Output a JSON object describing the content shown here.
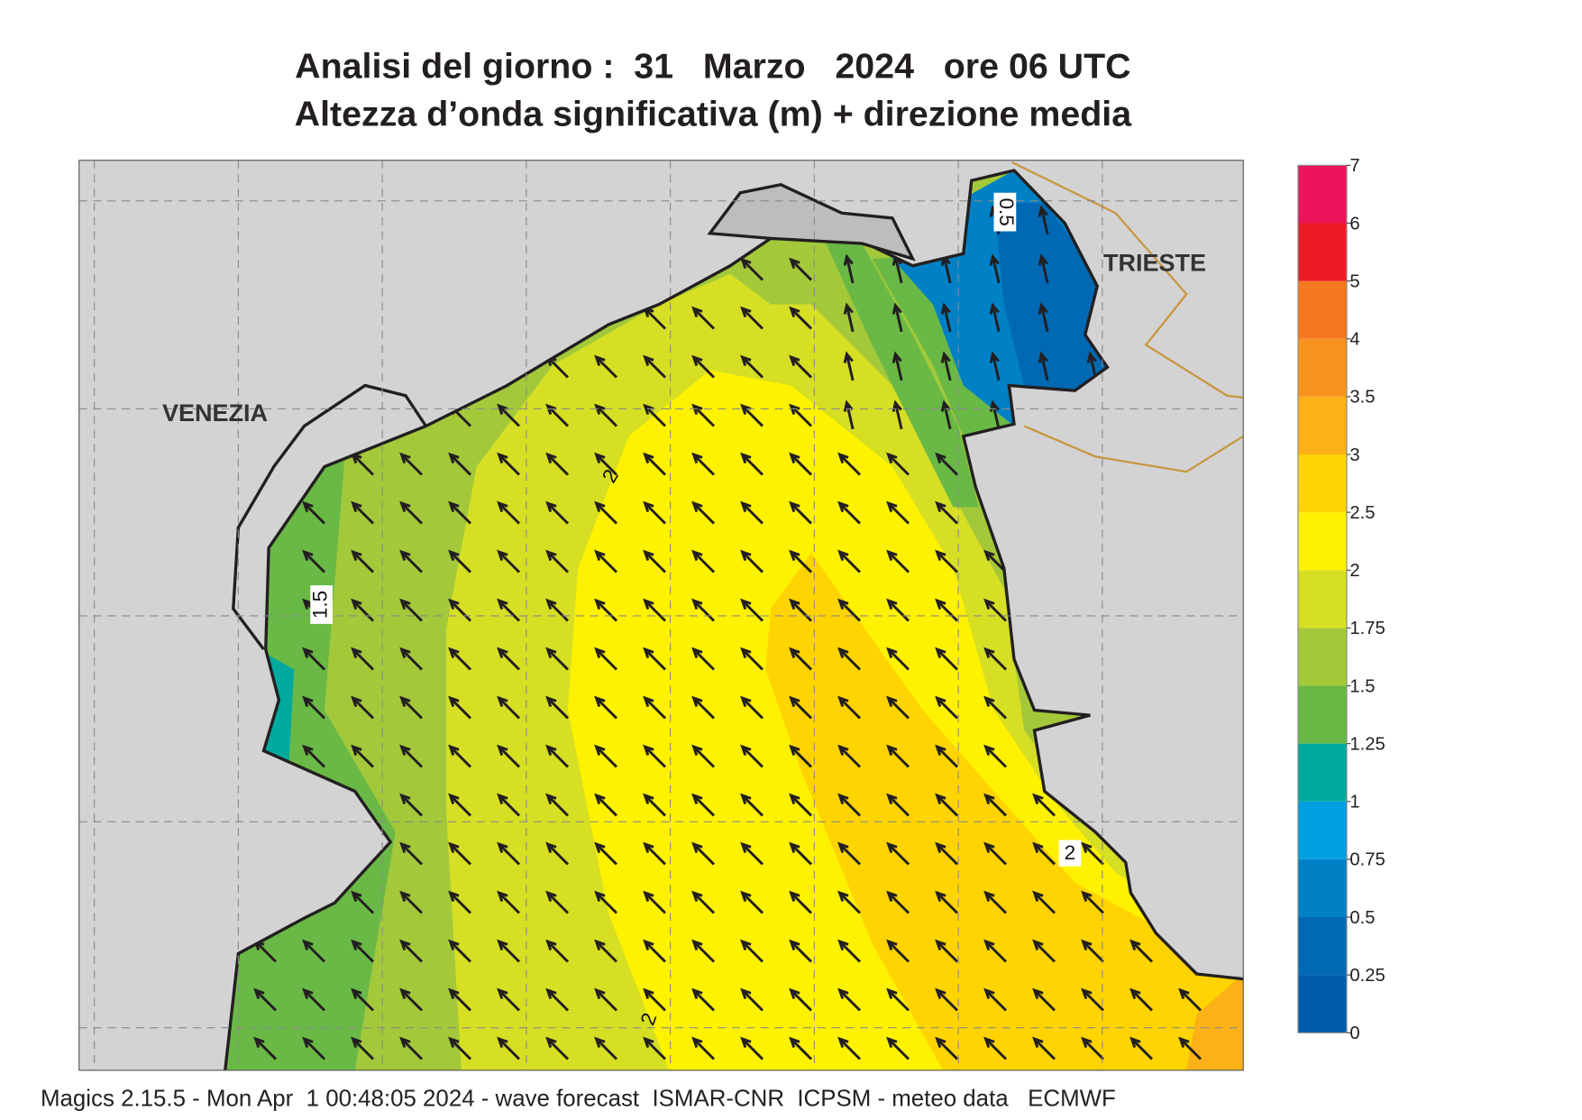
{
  "title": [
    "Analisi del giorno :  31   Marzo   2024   ore 06 UTC",
    "Altezza d’onda significativa (m) + direzione media"
  ],
  "places": [
    "VENEZIA",
    "TRIESTE"
  ],
  "contour_labels": [
    0.5,
    1.5,
    2,
    2,
    2
  ],
  "colorbar": {
    "ticks": [
      0,
      0.25,
      0.5,
      0.75,
      1,
      1.25,
      1.5,
      1.75,
      2,
      2.5,
      3,
      3.5,
      4,
      5,
      6,
      7
    ],
    "colors": [
      "#005bab",
      "#0069b4",
      "#0081c6",
      "#009fe0",
      "#00a99d",
      "#6ab946",
      "#a3c93a",
      "#d6df24",
      "#fff200",
      "#ffd400",
      "#fbb117",
      "#f7941d",
      "#f47920",
      "#ed1c24",
      "#ed145b"
    ]
  },
  "footer": "Magics 2.15.5 - Mon Apr  1 00:48:05 2024 - wave forecast  ISMAR-CNR  ICPSM - meteo data   ECMWF"
}
